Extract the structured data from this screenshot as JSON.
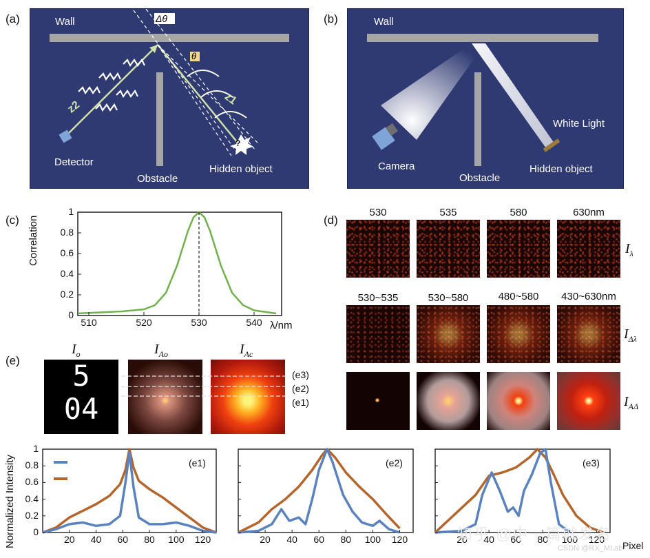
{
  "panel_labels": {
    "a": "(a)",
    "b": "(b)",
    "c": "(c)",
    "d": "(d)",
    "e": "(e)"
  },
  "scene_a": {
    "wall": "Wall",
    "obstacle": "Obstacle",
    "detector": "Detector",
    "hidden_object": "Hidden object",
    "z1": "z1",
    "z2": "z2",
    "theta": "θ",
    "delta_theta": "Δθ",
    "question": "?"
  },
  "scene_b": {
    "wall": "Wall",
    "camera": "Camera",
    "obstacle": "Obstacle",
    "white_light": "White Light",
    "hidden_object": "Hidden object"
  },
  "plot_c": {
    "ylabel": "Correlation",
    "xlabel": "λ/nm",
    "yticks": [
      "1",
      "0.8",
      "0.6",
      "0.4",
      "0.2",
      "0"
    ],
    "xticks": [
      "510",
      "520",
      "530",
      "540"
    ]
  },
  "panel_d": {
    "row1": [
      "530",
      "535",
      "580",
      "630nm"
    ],
    "row2": [
      "530~535",
      "530~580",
      "480~580",
      "430~630nm"
    ],
    "row_symbols": {
      "r1_main": "I",
      "r1_sub": "λ",
      "r2_main": "I",
      "r2_sub": "Δλ",
      "r3_main": "I",
      "r3_sub": "AΔ"
    }
  },
  "panel_e": {
    "titles": [
      {
        "main": "I",
        "sub": "o"
      },
      {
        "main": "I",
        "sub": "Ao"
      },
      {
        "main": "I",
        "sub": "Ac"
      }
    ],
    "digits": "5\n04",
    "lines": [
      "(e3)",
      "(e2)",
      "(e1)"
    ]
  },
  "bottom": {
    "ylabel": "Normalized Intensity",
    "yticks": [
      "1",
      "0.8",
      "0.6",
      "0.4",
      "0.2",
      "0"
    ],
    "xticks": [
      "20",
      "40",
      "60",
      "80",
      "100",
      "120"
    ],
    "xlabel": "Pixel",
    "subplots": [
      "(e1)",
      "(e2)",
      "(e3)"
    ]
  },
  "watermark": {
    "main": "知乎 @中一篇就发名",
    "sub": "CSDN @RX_MLab"
  },
  "chart_data": [
    {
      "type": "line",
      "title": "",
      "xlabel": "λ/nm",
      "ylabel": "Correlation",
      "xlim": [
        508,
        545
      ],
      "ylim": [
        0,
        1
      ],
      "series": [
        {
          "name": "correlation",
          "color": "#6fb24a",
          "x": [
            508,
            512,
            516,
            520,
            522,
            524,
            526,
            528,
            529,
            530,
            531,
            532,
            534,
            536,
            538,
            540,
            544
          ],
          "y": [
            0.02,
            0.03,
            0.04,
            0.06,
            0.1,
            0.22,
            0.48,
            0.82,
            0.95,
            1.0,
            0.95,
            0.82,
            0.48,
            0.22,
            0.1,
            0.05,
            0.02
          ]
        }
      ],
      "annotation": "dashed line at 530"
    },
    {
      "type": "line",
      "title": "(e1)",
      "xlabel": "Pixel",
      "ylabel": "Normalized Intensity",
      "xlim": [
        0,
        130
      ],
      "ylim": [
        0,
        1
      ],
      "series": [
        {
          "name": "blue",
          "color": "#5b82c0",
          "x": [
            0,
            10,
            20,
            30,
            40,
            50,
            58,
            62,
            65,
            68,
            72,
            80,
            90,
            100,
            110,
            120,
            130
          ],
          "y": [
            0,
            0.04,
            0.1,
            0.12,
            0.08,
            0.1,
            0.2,
            0.6,
            0.96,
            0.55,
            0.18,
            0.1,
            0.1,
            0.12,
            0.08,
            0.02,
            0
          ]
        },
        {
          "name": "orange",
          "color": "#b5652a",
          "x": [
            0,
            10,
            20,
            30,
            40,
            50,
            58,
            62,
            65,
            68,
            72,
            80,
            90,
            100,
            110,
            120,
            130
          ],
          "y": [
            0,
            0.06,
            0.18,
            0.26,
            0.34,
            0.44,
            0.58,
            0.75,
            1.0,
            0.78,
            0.62,
            0.52,
            0.42,
            0.3,
            0.18,
            0.06,
            0
          ]
        }
      ]
    },
    {
      "type": "line",
      "title": "(e2)",
      "xlabel": "Pixel",
      "ylabel": "Normalized Intensity",
      "xlim": [
        0,
        130
      ],
      "ylim": [
        0,
        1
      ],
      "series": [
        {
          "name": "blue",
          "color": "#5b82c0",
          "x": [
            0,
            15,
            25,
            32,
            38,
            45,
            50,
            55,
            60,
            66,
            70,
            78,
            85,
            92,
            100,
            105,
            112,
            120
          ],
          "y": [
            0,
            0.02,
            0.1,
            0.28,
            0.14,
            0.18,
            0.1,
            0.4,
            0.75,
            1.0,
            0.85,
            0.45,
            0.25,
            0.12,
            0.08,
            0.14,
            0.04,
            0
          ]
        },
        {
          "name": "orange",
          "color": "#b5652a",
          "x": [
            0,
            15,
            25,
            35,
            45,
            55,
            62,
            66,
            72,
            80,
            90,
            100,
            110,
            120
          ],
          "y": [
            0,
            0.12,
            0.28,
            0.4,
            0.55,
            0.75,
            0.92,
            1.0,
            0.9,
            0.72,
            0.55,
            0.4,
            0.22,
            0.05
          ]
        }
      ]
    },
    {
      "type": "line",
      "title": "(e3)",
      "xlabel": "Pixel",
      "ylabel": "Normalized Intensity",
      "xlim": [
        0,
        130
      ],
      "ylim": [
        0,
        1
      ],
      "series": [
        {
          "name": "blue",
          "color": "#5b82c0",
          "x": [
            0,
            20,
            30,
            35,
            42,
            48,
            54,
            58,
            62,
            66,
            72,
            78,
            82,
            86,
            92,
            100
          ],
          "y": [
            0,
            0.02,
            0.1,
            0.45,
            0.72,
            0.5,
            0.25,
            0.3,
            0.2,
            0.5,
            0.7,
            0.95,
            1.0,
            0.6,
            0.1,
            0
          ]
        },
        {
          "name": "orange",
          "color": "#b5652a",
          "x": [
            0,
            10,
            20,
            30,
            40,
            50,
            60,
            70,
            76,
            82,
            88,
            95,
            105,
            115,
            125
          ],
          "y": [
            0,
            0.15,
            0.3,
            0.45,
            0.68,
            0.72,
            0.78,
            0.9,
            1.0,
            0.9,
            0.7,
            0.45,
            0.2,
            0.06,
            0
          ]
        }
      ]
    }
  ]
}
